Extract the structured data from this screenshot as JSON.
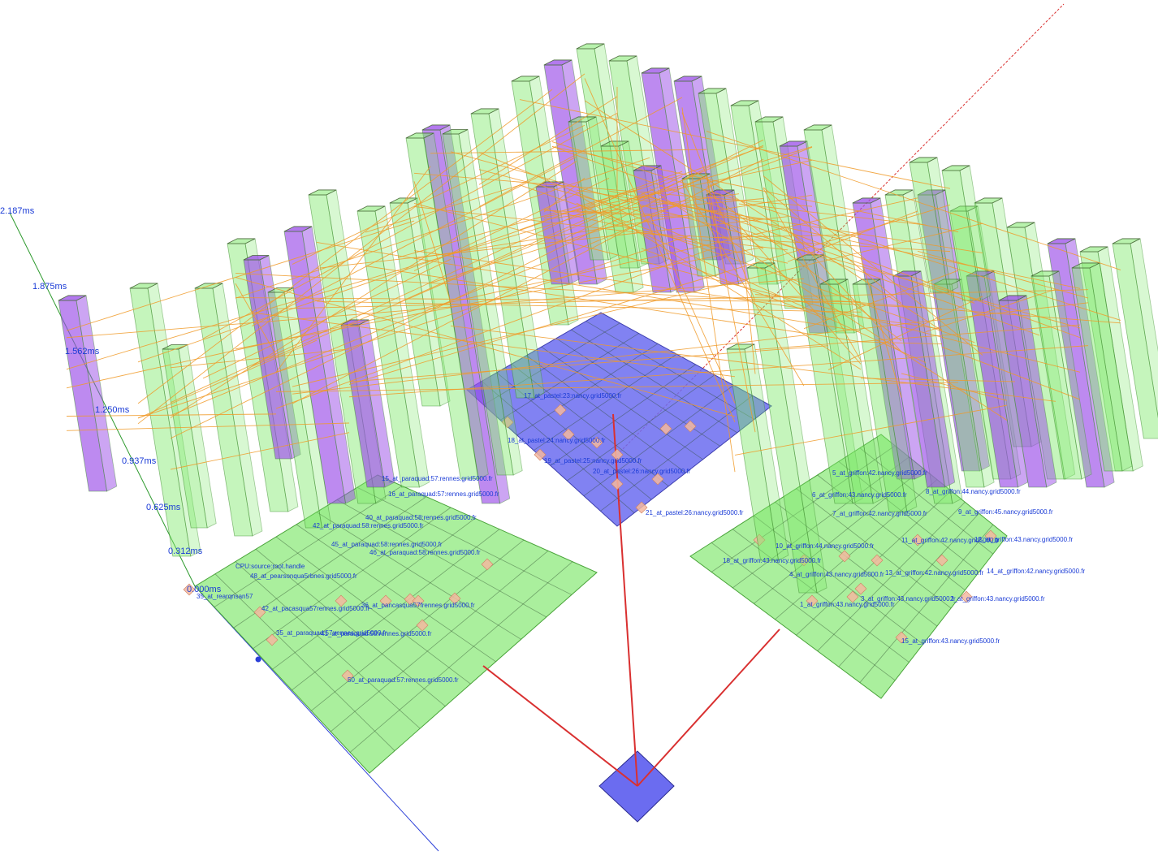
{
  "scene": {
    "colors": {
      "background": "#ffffff",
      "plate_green": "#8eea7c",
      "plate_blue": "#6b6cf0",
      "column_green": "#7ee86a",
      "column_purple": "#9a4ce8",
      "column_edge": "#3c8a2c",
      "edge_orange": "#f09a28",
      "tree_red": "#d93030",
      "axis_blue": "#2b3fd8",
      "axis_green": "#2e9a2e",
      "node_marker": "#f3b9a0",
      "label_blue": "#1a3bd6"
    },
    "axis_ticks": [
      {
        "label": "2.187ms",
        "value": 2.187
      },
      {
        "label": "1.875ms",
        "value": 1.875
      },
      {
        "label": "1.562ms",
        "value": 1.562
      },
      {
        "label": "1.250ms",
        "value": 1.25
      },
      {
        "label": "0.937ms",
        "value": 0.937
      },
      {
        "label": "0.625ms",
        "value": 0.625
      },
      {
        "label": "0.312ms",
        "value": 0.312
      },
      {
        "label": "0.000ms",
        "value": 0.0
      }
    ],
    "node_labels": [
      "CPU:source:root.handle",
      "35_at_rearqnsan57",
      "48_at_pearsonqua5rbnes.grid5000.fr",
      "36_at_pancasqua57frennes.grid5000.fr",
      "42_at_pacasqua57rennes.grid5000.fr",
      "35_at_paraquad:57:rennes.grid5000.fr",
      "41_at_paraquad:58:rennes.grid5000.fr",
      "50_at_paraquad:57:rennes.grid5000.fr",
      "15_at_paraquad:57:rennes.grid5000.fr",
      "16_at_paraquad:57:rennes.grid5000.fr",
      "40_at_paraquad:58:rennes.grid5000.fr",
      "42_at_paraquad:58:rennes.grid5000.fr",
      "45_at_paraquad:58:rennes.grid5000.fr",
      "46_at_paraquad:58:rennes.grid5000.fr",
      "17_at_pastel:23:nancy.grid5000.fr",
      "18_at_pastel:24:nancy.grid5000.fr",
      "19_at_pastel:25:nancy.grid5000.fr",
      "20_at_pastel:26:nancy.grid5000.fr",
      "21_at_pastel:26:nancy.grid5000.fr",
      "5_at_griffon:42.nancy.grid5000.fr",
      "6_at_griffon:43.nancy.grid5000.fr",
      "7_at_griffon:42.nancy.grid5000.fr",
      "8_at_griffon:44.nancy.grid5000.fr",
      "9_at_griffon:45.nancy.grid5000.fr",
      "10_at_griffon:44.nancy.grid5000.fr",
      "11_at_griffon:42.nancy.grid5000.fr",
      "12_at_griffon:43.nancy.grid5000.fr",
      "13_at_griffon:42.nancy.grid5000.fr",
      "14_at_griffon:42.nancy.grid5000.fr",
      "4_at_griffon:43.nancy.grid5000.fr",
      "3_at_griffon:43.nancy.grid5000.fr",
      "2_at_griffon:43.nancy.grid5000.fr",
      "1_at_griffon:43.nancy.grid5000.fr",
      "15_at_griffon:43.nancy.grid5000.fr",
      "18_at_griffon:43.nancy.grid5000.fr"
    ]
  }
}
